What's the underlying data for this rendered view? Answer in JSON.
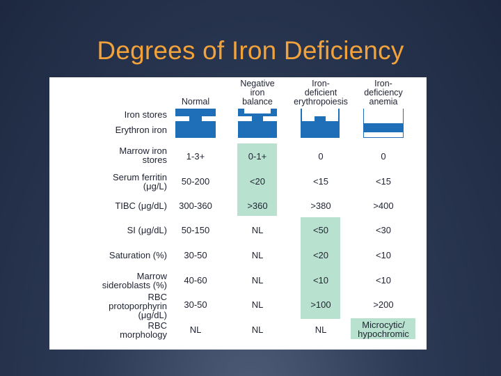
{
  "title": "Degrees of Iron Deficiency",
  "colors": {
    "title": "#f2a23a",
    "iron_blue": "#1f6fb8",
    "highlight": "#b8e2cf"
  },
  "columns": [
    {
      "line1": "",
      "line2": "",
      "line3": "Normal"
    },
    {
      "line1": "Negative",
      "line2": "iron",
      "line3": "balance"
    },
    {
      "line1": "Iron-",
      "line2": "deficient",
      "line3": "erythropoiesis"
    },
    {
      "line1": "Iron-",
      "line2": "deficiency",
      "line3": "anemia"
    }
  ],
  "rows": {
    "iron_stores": "Iron stores",
    "erythron_iron": "Erythron iron",
    "marrow": {
      "line1": "Marrow iron",
      "line2": "stores",
      "values": [
        "1-3+",
        "0-1+",
        "0",
        "0"
      ]
    },
    "ferritin": {
      "line1": "Serum ferritin",
      "line2": "(μg/L)",
      "values": [
        "50-200",
        "<20",
        "<15",
        "<15"
      ]
    },
    "tibc": {
      "label": "TIBC (μg/dL)",
      "values": [
        "300-360",
        ">360",
        ">380",
        ">400"
      ]
    },
    "si": {
      "label": "SI (μg/dL)",
      "values": [
        "50-150",
        "NL",
        "<50",
        "<30"
      ]
    },
    "saturation": {
      "label": "Saturation (%)",
      "values": [
        "30-50",
        "NL",
        "<20",
        "<10"
      ]
    },
    "sideroblasts": {
      "line1": "Marrow",
      "line2": "sideroblasts (%)",
      "values": [
        "40-60",
        "NL",
        "<10",
        "<10"
      ]
    },
    "protoporphyrin": {
      "line1": "RBC",
      "line2": "protoporphyrin",
      "line3": "(μg/dL)",
      "values": [
        "30-50",
        "NL",
        ">100",
        ">200"
      ]
    },
    "morphology": {
      "line1": "RBC",
      "line2": "morphology",
      "values": [
        "NL",
        "NL",
        "NL"
      ],
      "last_line1": "Microcytic/",
      "last_line2": "hypochromic"
    }
  }
}
